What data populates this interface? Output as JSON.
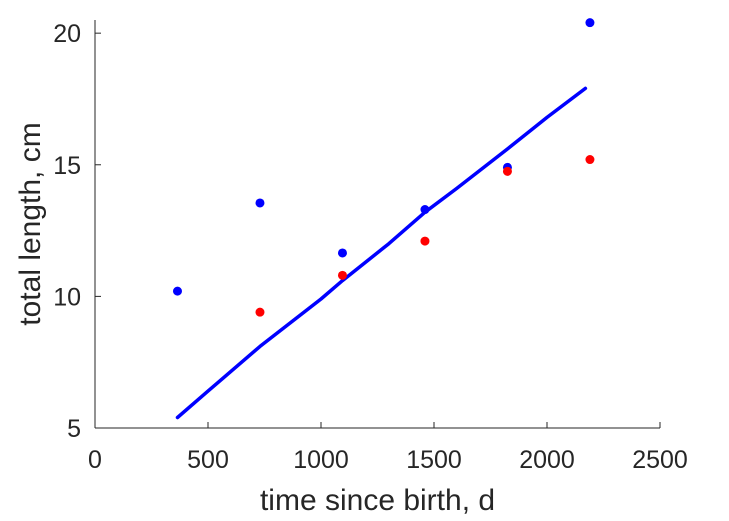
{
  "chart_data": {
    "type": "scatter",
    "xlabel": "time since birth, d",
    "ylabel": "total length, cm",
    "xlim": [
      0,
      2500
    ],
    "ylim": [
      5,
      20.5
    ],
    "xticks": [
      0,
      500,
      1000,
      1500,
      2000,
      2500
    ],
    "yticks": [
      5,
      10,
      15,
      20
    ],
    "grid": false,
    "legend": "none",
    "series": [
      {
        "kind": "scatter",
        "color": "#0000ff",
        "points": [
          {
            "x": 365,
            "y": 10.2
          },
          {
            "x": 730,
            "y": 13.55
          },
          {
            "x": 1095,
            "y": 11.65
          },
          {
            "x": 1460,
            "y": 13.3
          },
          {
            "x": 1825,
            "y": 14.9
          },
          {
            "x": 2190,
            "y": 20.4
          }
        ]
      },
      {
        "kind": "scatter",
        "color": "#ff0000",
        "points": [
          {
            "x": 730,
            "y": 9.4
          },
          {
            "x": 1095,
            "y": 10.8
          },
          {
            "x": 1460,
            "y": 12.1
          },
          {
            "x": 1825,
            "y": 14.75
          },
          {
            "x": 2190,
            "y": 15.2
          }
        ]
      },
      {
        "kind": "line",
        "color": "#0000ff",
        "points": [
          {
            "x": 365,
            "y": 5.4
          },
          {
            "x": 500,
            "y": 6.4
          },
          {
            "x": 730,
            "y": 8.1
          },
          {
            "x": 1000,
            "y": 9.9
          },
          {
            "x": 1095,
            "y": 10.6
          },
          {
            "x": 1300,
            "y": 12.0
          },
          {
            "x": 1460,
            "y": 13.2
          },
          {
            "x": 1600,
            "y": 14.1
          },
          {
            "x": 1825,
            "y": 15.6
          },
          {
            "x": 2000,
            "y": 16.8
          },
          {
            "x": 2170,
            "y": 17.9
          }
        ]
      }
    ]
  }
}
